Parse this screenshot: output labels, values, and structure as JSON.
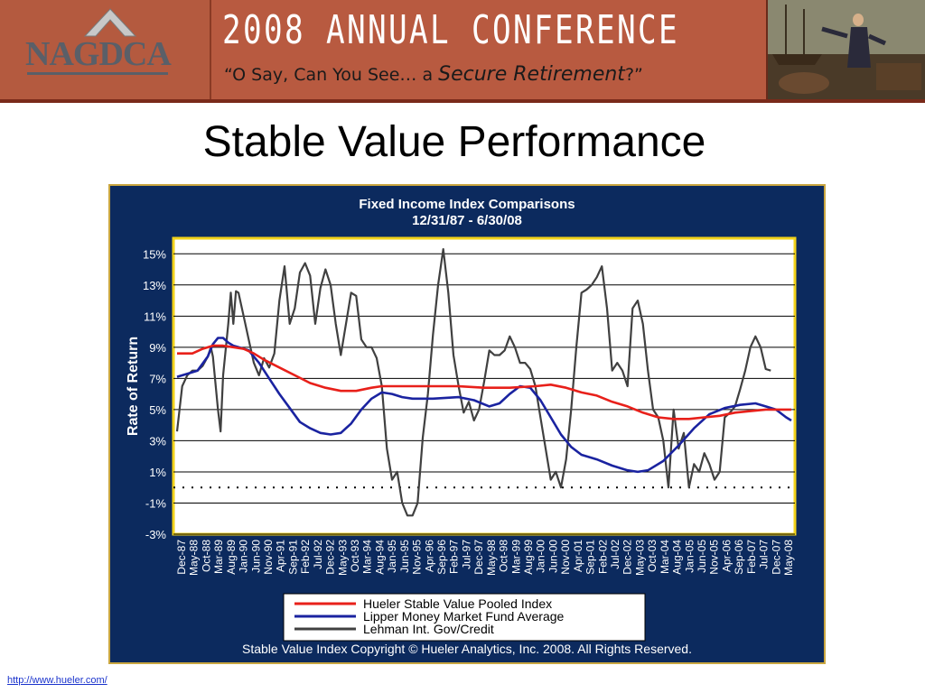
{
  "header": {
    "logo_text": "NAGDCA",
    "conference_title": "2008 Annual Conference",
    "tagline_prefix": "“O Say, Can You See… a ",
    "tagline_emphasis": "Secure Retirement",
    "tagline_suffix": "?”"
  },
  "page_title": "Stable Value Performance",
  "footer": {
    "link_text": "http://www.hueler.com/"
  },
  "colors": {
    "banner": "#b85a40",
    "chart_bg": "#0c2a5e",
    "frame_border": "#c9a640",
    "hueler": "#e8201a",
    "lipper": "#1a23a0",
    "lehman": "#404040"
  },
  "chart_data": {
    "type": "line",
    "title": "Fixed Income Index Comparisons",
    "subtitle": "12/31/87 - 6/30/08",
    "ylabel": "Rate of Return",
    "ylim": [
      -3,
      16
    ],
    "yticks": [
      "15%",
      "13%",
      "11%",
      "9%",
      "7%",
      "5%",
      "3%",
      "1%",
      "-1%",
      "-3%"
    ],
    "ytick_values": [
      15,
      13,
      11,
      9,
      7,
      5,
      3,
      1,
      -1,
      -3
    ],
    "zero_line": 0,
    "x_categories": [
      "Dec-87",
      "May-88",
      "Oct-88",
      "Mar-89",
      "Aug-89",
      "Jan-90",
      "Jun-90",
      "Nov-90",
      "Apr-91",
      "Sep-91",
      "Feb-92",
      "Jul-92",
      "Dec-92",
      "May-93",
      "Oct-93",
      "Mar-94",
      "Aug-94",
      "Jan-95",
      "Jun-95",
      "Nov-95",
      "Apr-96",
      "Sep-96",
      "Feb-97",
      "Jul-97",
      "Dec-97",
      "May-98",
      "Oct-98",
      "Mar-99",
      "Aug-99",
      "Jan-00",
      "Jun-00",
      "Nov-00",
      "Apr-01",
      "Sep-01",
      "Feb-02",
      "Jul-02",
      "Dec-02",
      "May-03",
      "Oct-03",
      "Mar-04",
      "Aug-04",
      "Jan-05",
      "Jun-05",
      "Nov-05",
      "Apr-06",
      "Sep-06",
      "Feb-07",
      "Jul-07",
      "Dec-07",
      "May-08"
    ],
    "grid": true,
    "legend_position": "bottom",
    "series": [
      {
        "name": "Hueler Stable Value Pooled Index",
        "color": "#e8201a",
        "points": [
          [
            0,
            8.6
          ],
          [
            3,
            8.6
          ],
          [
            5,
            8.9
          ],
          [
            7,
            9.1
          ],
          [
            9,
            9.1
          ],
          [
            11,
            9.0
          ],
          [
            13,
            8.9
          ],
          [
            15,
            8.6
          ],
          [
            17,
            8.2
          ],
          [
            20,
            7.7
          ],
          [
            23,
            7.2
          ],
          [
            26,
            6.7
          ],
          [
            29,
            6.4
          ],
          [
            32,
            6.2
          ],
          [
            35,
            6.2
          ],
          [
            38,
            6.4
          ],
          [
            40,
            6.5
          ],
          [
            45,
            6.5
          ],
          [
            50,
            6.5
          ],
          [
            55,
            6.5
          ],
          [
            60,
            6.4
          ],
          [
            65,
            6.4
          ],
          [
            70,
            6.5
          ],
          [
            73,
            6.6
          ],
          [
            76,
            6.4
          ],
          [
            79,
            6.1
          ],
          [
            82,
            5.9
          ],
          [
            85,
            5.5
          ],
          [
            88,
            5.2
          ],
          [
            91,
            4.8
          ],
          [
            94,
            4.5
          ],
          [
            97,
            4.4
          ],
          [
            100,
            4.4
          ],
          [
            103,
            4.5
          ],
          [
            106,
            4.6
          ],
          [
            109,
            4.8
          ],
          [
            112,
            4.9
          ],
          [
            115,
            5.0
          ],
          [
            118,
            5.0
          ],
          [
            120,
            5.0
          ]
        ]
      },
      {
        "name": "Lipper Money Market Fund Average",
        "color": "#1a23a0",
        "points": [
          [
            0,
            7.1
          ],
          [
            2,
            7.3
          ],
          [
            4,
            7.5
          ],
          [
            6,
            8.4
          ],
          [
            7,
            9.2
          ],
          [
            8,
            9.6
          ],
          [
            9,
            9.6
          ],
          [
            10,
            9.3
          ],
          [
            11,
            9.1
          ],
          [
            12,
            9.0
          ],
          [
            14,
            8.8
          ],
          [
            16,
            8.0
          ],
          [
            18,
            7.0
          ],
          [
            20,
            6.0
          ],
          [
            22,
            5.1
          ],
          [
            24,
            4.2
          ],
          [
            26,
            3.8
          ],
          [
            28,
            3.5
          ],
          [
            30,
            3.4
          ],
          [
            32,
            3.5
          ],
          [
            34,
            4.1
          ],
          [
            36,
            5.0
          ],
          [
            38,
            5.7
          ],
          [
            40,
            6.1
          ],
          [
            42,
            6.0
          ],
          [
            44,
            5.8
          ],
          [
            46,
            5.7
          ],
          [
            50,
            5.7
          ],
          [
            55,
            5.8
          ],
          [
            58,
            5.6
          ],
          [
            61,
            5.2
          ],
          [
            63,
            5.4
          ],
          [
            65,
            6.0
          ],
          [
            67,
            6.5
          ],
          [
            69,
            6.4
          ],
          [
            71,
            5.6
          ],
          [
            73,
            4.5
          ],
          [
            75,
            3.4
          ],
          [
            77,
            2.6
          ],
          [
            79,
            2.1
          ],
          [
            82,
            1.8
          ],
          [
            85,
            1.4
          ],
          [
            88,
            1.1
          ],
          [
            90,
            1.0
          ],
          [
            92,
            1.1
          ],
          [
            95,
            1.7
          ],
          [
            98,
            2.7
          ],
          [
            101,
            3.8
          ],
          [
            104,
            4.7
          ],
          [
            107,
            5.1
          ],
          [
            110,
            5.3
          ],
          [
            113,
            5.4
          ],
          [
            115,
            5.2
          ],
          [
            117,
            5.0
          ],
          [
            119,
            4.5
          ],
          [
            120,
            4.3
          ]
        ]
      },
      {
        "name": "Lehman Int. Gov/Credit",
        "color": "#404040",
        "points": [
          [
            0,
            3.6
          ],
          [
            1,
            6.5
          ],
          [
            2,
            7.2
          ],
          [
            3,
            7.5
          ],
          [
            4,
            7.5
          ],
          [
            5,
            7.8
          ],
          [
            6,
            8.4
          ],
          [
            6.6,
            9.0
          ],
          [
            7,
            8.4
          ],
          [
            8,
            5.0
          ],
          [
            8.5,
            3.6
          ],
          [
            9,
            7.2
          ],
          [
            10,
            10.5
          ],
          [
            10.5,
            12.5
          ],
          [
            11,
            10.5
          ],
          [
            11.5,
            12.6
          ],
          [
            12,
            12.5
          ],
          [
            13,
            11.0
          ],
          [
            14,
            9.5
          ],
          [
            15,
            8.0
          ],
          [
            16,
            7.2
          ],
          [
            17,
            8.3
          ],
          [
            18,
            7.7
          ],
          [
            19,
            8.6
          ],
          [
            20,
            12.0
          ],
          [
            21,
            14.2
          ],
          [
            22,
            10.5
          ],
          [
            23,
            11.5
          ],
          [
            24,
            13.8
          ],
          [
            25,
            14.4
          ],
          [
            26,
            13.6
          ],
          [
            27,
            10.5
          ],
          [
            28,
            12.8
          ],
          [
            29,
            14.0
          ],
          [
            30,
            13.0
          ],
          [
            31,
            10.5
          ],
          [
            32,
            8.5
          ],
          [
            33,
            10.5
          ],
          [
            34,
            12.5
          ],
          [
            35,
            12.3
          ],
          [
            36,
            9.5
          ],
          [
            37,
            9.0
          ],
          [
            38,
            9.0
          ],
          [
            39,
            8.3
          ],
          [
            40,
            6.5
          ],
          [
            41,
            2.5
          ],
          [
            42,
            0.5
          ],
          [
            43,
            1.0
          ],
          [
            44,
            -1.0
          ],
          [
            45,
            -1.8
          ],
          [
            46,
            -1.8
          ],
          [
            47,
            -1.0
          ],
          [
            48,
            3.2
          ],
          [
            49,
            6.0
          ],
          [
            50,
            9.8
          ],
          [
            51,
            13.0
          ],
          [
            52,
            15.3
          ],
          [
            53,
            12.5
          ],
          [
            54,
            8.5
          ],
          [
            55,
            6.5
          ],
          [
            56,
            4.8
          ],
          [
            57,
            5.5
          ],
          [
            58,
            4.3
          ],
          [
            59,
            5.0
          ],
          [
            60,
            6.8
          ],
          [
            61,
            8.8
          ],
          [
            62,
            8.5
          ],
          [
            63,
            8.5
          ],
          [
            64,
            8.8
          ],
          [
            65,
            9.7
          ],
          [
            66,
            9.0
          ],
          [
            67,
            8.0
          ],
          [
            68,
            8.0
          ],
          [
            69,
            7.6
          ],
          [
            70,
            6.5
          ],
          [
            71,
            4.5
          ],
          [
            72,
            2.5
          ],
          [
            73,
            0.5
          ],
          [
            74,
            1.0
          ],
          [
            75,
            0.0
          ],
          [
            76,
            1.8
          ],
          [
            77,
            5.0
          ],
          [
            78,
            9.0
          ],
          [
            79,
            12.5
          ],
          [
            80,
            12.7
          ],
          [
            81,
            13.0
          ],
          [
            82,
            13.5
          ],
          [
            83,
            14.2
          ],
          [
            84,
            11.5
          ],
          [
            85,
            7.5
          ],
          [
            86,
            8.0
          ],
          [
            87,
            7.5
          ],
          [
            88,
            6.5
          ],
          [
            89,
            11.5
          ],
          [
            90,
            12.0
          ],
          [
            91,
            10.5
          ],
          [
            92,
            7.5
          ],
          [
            93,
            5.0
          ],
          [
            94,
            4.5
          ],
          [
            95,
            3.0
          ],
          [
            96,
            0.0
          ],
          [
            97,
            5.0
          ],
          [
            98,
            2.5
          ],
          [
            99,
            3.5
          ],
          [
            100,
            0.0
          ],
          [
            101,
            1.5
          ],
          [
            102,
            1.0
          ],
          [
            103,
            2.2
          ],
          [
            104,
            1.5
          ],
          [
            105,
            0.5
          ],
          [
            106,
            1.0
          ],
          [
            107,
            4.5
          ],
          [
            108,
            4.8
          ],
          [
            109,
            5.2
          ],
          [
            110,
            6.3
          ],
          [
            111,
            7.5
          ],
          [
            112,
            9.0
          ],
          [
            113,
            9.7
          ],
          [
            114,
            9.0
          ],
          [
            115,
            7.6
          ],
          [
            116,
            7.5
          ]
        ]
      }
    ],
    "footnote": "Stable Value Index Copyright © Hueler Analytics, Inc. 2008.  All Rights Reserved."
  }
}
